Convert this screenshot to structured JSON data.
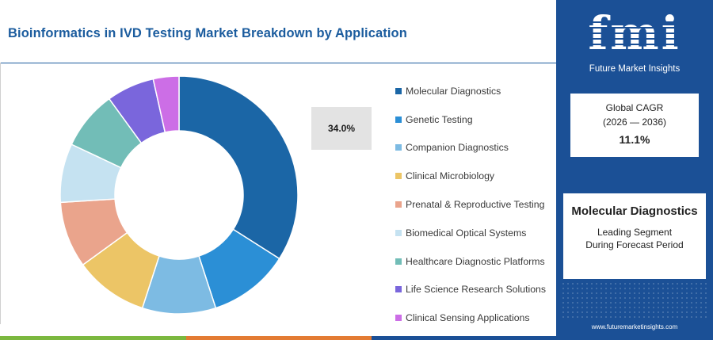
{
  "title": "Bioinformatics in IVD Testing Market Breakdown by Application",
  "highlight_value": "34.0%",
  "chart_data": {
    "type": "pie",
    "donut": true,
    "title": "Bioinformatics in IVD Testing Market Breakdown by Application",
    "categories": [
      "Molecular Diagnostics",
      "Genetic Testing",
      "Companion Diagnostics",
      "Clinical Microbiology",
      "Prenatal & Reproductive Testing",
      "Biomedical Optical Systems",
      "Healthcare Diagnostic Platforms",
      "Life Science Research Solutions",
      "Clinical Sensing Applications"
    ],
    "values": [
      34.0,
      11.0,
      10.0,
      10.0,
      9.0,
      8.0,
      8.0,
      6.5,
      3.5
    ],
    "colors": [
      "#1b66a6",
      "#2b8fd6",
      "#7dbbe3",
      "#ecc566",
      "#eaa48c",
      "#c5e2f1",
      "#72bdb7",
      "#7a66dc",
      "#cc6ee6"
    ],
    "labels": {
      "Molecular Diagnostics": "34.0%"
    },
    "legend_position": "right"
  },
  "legend_items": [
    "Molecular Diagnostics",
    "Genetic Testing",
    "Companion Diagnostics",
    "Clinical Microbiology",
    "Prenatal & Reproductive Testing",
    "Biomedical Optical Systems",
    "Healthcare Diagnostic Platforms",
    "Life Science Research Solutions",
    "Clinical Sensing Applications"
  ],
  "brand": {
    "logo_text": "fmi",
    "logo_subtitle": "Future Market Insights",
    "url": "www.futuremarketinsights.com",
    "panel_color": "#1b5096"
  },
  "cagr": {
    "label": "Global CAGR",
    "period": "(2026 — 2036)",
    "value": "11.1%"
  },
  "leading_segment": {
    "name": "Molecular Diagnostics",
    "subtitle_line1": "Leading Segment",
    "subtitle_line2": "During Forecast Period"
  },
  "bottom_bar_colors": [
    "#7bb83f",
    "#e37b33",
    "#1b5096",
    "#1b5096"
  ]
}
